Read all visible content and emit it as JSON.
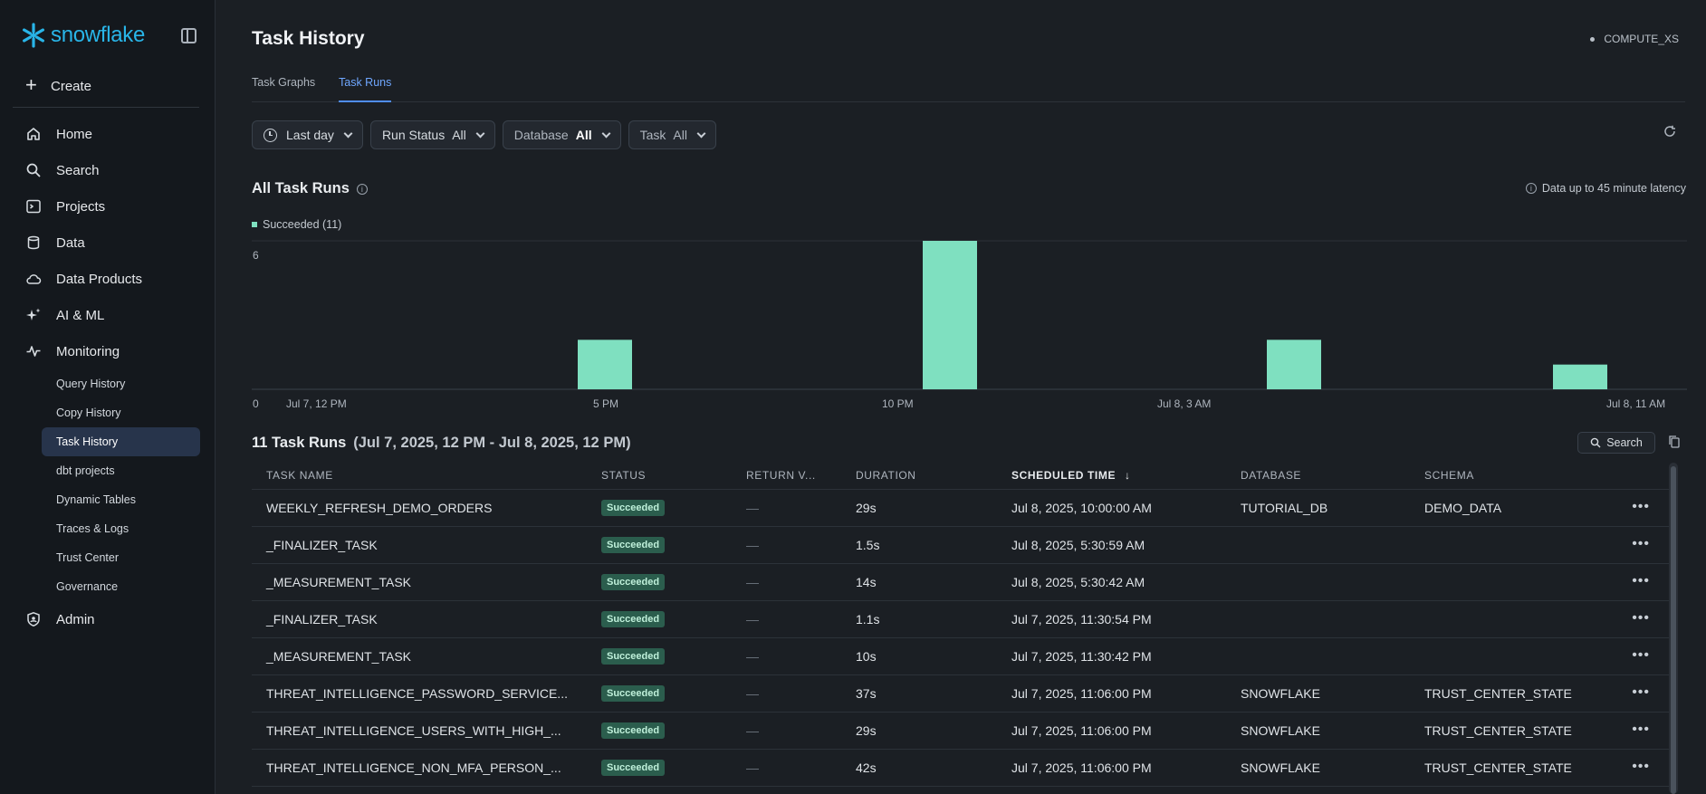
{
  "brand": {
    "name": "snowflake",
    "color": "#29b5e8"
  },
  "sidebar": {
    "create_label": "Create",
    "items": [
      {
        "label": "Home",
        "icon": "home-icon"
      },
      {
        "label": "Search",
        "icon": "search-icon"
      },
      {
        "label": "Projects",
        "icon": "terminal-icon"
      },
      {
        "label": "Data",
        "icon": "database-icon"
      },
      {
        "label": "Data Products",
        "icon": "cloud-icon"
      },
      {
        "label": "AI & ML",
        "icon": "sparkle-icon"
      },
      {
        "label": "Monitoring",
        "icon": "activity-icon"
      }
    ],
    "monitoring_items": [
      {
        "label": "Query History"
      },
      {
        "label": "Copy History"
      },
      {
        "label": "Task History",
        "active": true
      },
      {
        "label": "dbt projects"
      },
      {
        "label": "Dynamic Tables"
      },
      {
        "label": "Traces & Logs"
      },
      {
        "label": "Trust Center"
      },
      {
        "label": "Governance"
      }
    ],
    "admin_label": "Admin"
  },
  "header": {
    "title": "Task History",
    "warehouse": "COMPUTE_XS"
  },
  "tabs": [
    {
      "label": "Task Graphs",
      "active": false
    },
    {
      "label": "Task Runs",
      "active": true
    }
  ],
  "filters": {
    "time": "Last day",
    "run_status": {
      "label": "Run Status",
      "value": "All"
    },
    "database": {
      "label": "Database",
      "value": "All"
    },
    "task": {
      "label": "Task",
      "value": "All"
    }
  },
  "chart_section": {
    "title": "All Task Runs",
    "latency_note": "Data up to 45 minute latency",
    "legend": "Succeeded (11)"
  },
  "chart_data": {
    "type": "bar",
    "series": [
      {
        "name": "Succeeded (11)",
        "color": "#7fe0c0",
        "values": [
          2,
          6,
          2,
          1
        ]
      }
    ],
    "categories": [
      "Jul 7, 5 PM",
      "Jul 7, 11 PM",
      "Jul 8, 5 AM",
      "Jul 8, 10 AM"
    ],
    "x_ticks": [
      "Jul 7, 12 PM",
      "5 PM",
      "10 PM",
      "Jul 8, 3 AM",
      "Jul 8, 11 AM"
    ],
    "y_ticks": [
      "0",
      "6"
    ],
    "ylim": [
      0,
      6
    ],
    "grid": true
  },
  "runs": {
    "title": "11 Task Runs",
    "range": "(Jul 7, 2025, 12 PM - Jul 8, 2025, 12 PM)",
    "search_label": "Search",
    "columns": [
      "TASK NAME",
      "STATUS",
      "RETURN V...",
      "DURATION",
      "SCHEDULED TIME",
      "DATABASE",
      "SCHEMA"
    ],
    "rows": [
      {
        "name": "WEEKLY_REFRESH_DEMO_ORDERS",
        "status": "Succeeded",
        "ret": "—",
        "duration": "29s",
        "scheduled": "Jul 8, 2025, 10:00:00 AM",
        "database": "TUTORIAL_DB",
        "schema": "DEMO_DATA"
      },
      {
        "name": "_FINALIZER_TASK",
        "status": "Succeeded",
        "ret": "—",
        "duration": "1.5s",
        "scheduled": "Jul 8, 2025, 5:30:59 AM",
        "database": "",
        "schema": ""
      },
      {
        "name": "_MEASUREMENT_TASK",
        "status": "Succeeded",
        "ret": "—",
        "duration": "14s",
        "scheduled": "Jul 8, 2025, 5:30:42 AM",
        "database": "",
        "schema": ""
      },
      {
        "name": "_FINALIZER_TASK",
        "status": "Succeeded",
        "ret": "—",
        "duration": "1.1s",
        "scheduled": "Jul 7, 2025, 11:30:54 PM",
        "database": "",
        "schema": ""
      },
      {
        "name": "_MEASUREMENT_TASK",
        "status": "Succeeded",
        "ret": "—",
        "duration": "10s",
        "scheduled": "Jul 7, 2025, 11:30:42 PM",
        "database": "",
        "schema": ""
      },
      {
        "name": "THREAT_INTELLIGENCE_PASSWORD_SERVICE...",
        "status": "Succeeded",
        "ret": "—",
        "duration": "37s",
        "scheduled": "Jul 7, 2025, 11:06:00 PM",
        "database": "SNOWFLAKE",
        "schema": "TRUST_CENTER_STATE"
      },
      {
        "name": "THREAT_INTELLIGENCE_USERS_WITH_HIGH_...",
        "status": "Succeeded",
        "ret": "—",
        "duration": "29s",
        "scheduled": "Jul 7, 2025, 11:06:00 PM",
        "database": "SNOWFLAKE",
        "schema": "TRUST_CENTER_STATE"
      },
      {
        "name": "THREAT_INTELLIGENCE_NON_MFA_PERSON_...",
        "status": "Succeeded",
        "ret": "—",
        "duration": "42s",
        "scheduled": "Jul 7, 2025, 11:06:00 PM",
        "database": "SNOWFLAKE",
        "schema": "TRUST_CENTER_STATE"
      }
    ]
  }
}
